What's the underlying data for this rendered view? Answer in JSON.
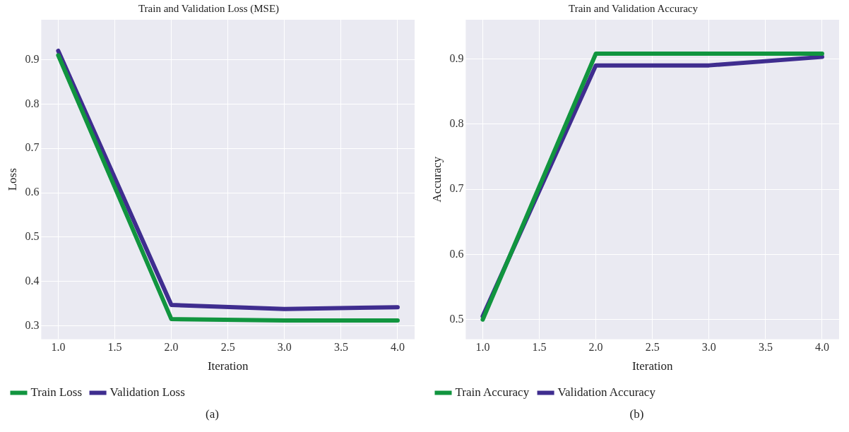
{
  "chart_data": [
    {
      "type": "line",
      "title": "Train and Validation Loss (MSE)",
      "xlabel": "Iteration",
      "ylabel": "Loss",
      "x": [
        1,
        2,
        3,
        4
      ],
      "series": [
        {
          "name": "Train Loss",
          "color": "#11953f",
          "values": [
            0.91,
            0.315,
            0.312,
            0.312
          ]
        },
        {
          "name": "Validation Loss",
          "color": "#3f2d8f",
          "values": [
            0.92,
            0.347,
            0.338,
            0.342
          ]
        }
      ],
      "xlim": [
        0.85,
        4.15
      ],
      "xticks": [
        {
          "value": 1,
          "label": "1.0"
        },
        1.5,
        {
          "value": 2,
          "label": "2.0"
        },
        2.5,
        {
          "value": 3,
          "label": "3.0"
        },
        3.5,
        {
          "value": 4,
          "label": "4.0"
        }
      ],
      "ylim": [
        0.27,
        0.99
      ],
      "yticks": [
        0.3,
        0.4,
        0.5,
        0.6,
        0.7,
        0.8,
        0.9
      ],
      "grid": true,
      "legend": "bottom",
      "line_style": "solid",
      "annotations": [
        "(a)"
      ]
    },
    {
      "type": "line",
      "title": "Train and Validation Accuracy",
      "xlabel": "Iteration",
      "ylabel": "Accuracy",
      "x": [
        1,
        2,
        3,
        4
      ],
      "series": [
        {
          "name": "Train Accuracy",
          "color": "#11953f",
          "values": [
            0.5,
            0.908,
            0.908,
            0.908
          ]
        },
        {
          "name": "Validation Accuracy",
          "color": "#3f2d8f",
          "values": [
            0.505,
            0.89,
            0.89,
            0.903
          ]
        }
      ],
      "xlim": [
        0.85,
        4.15
      ],
      "xticks": [
        {
          "value": 1,
          "label": "1.0"
        },
        1.5,
        {
          "value": 2,
          "label": "2.0"
        },
        2.5,
        {
          "value": 3,
          "label": "3.0"
        },
        3.5,
        {
          "value": 4,
          "label": "4.0"
        }
      ],
      "ylim": [
        0.47,
        0.96
      ],
      "yticks": [
        0.5,
        0.6,
        0.7,
        0.8,
        0.9
      ],
      "grid": true,
      "legend": "bottom",
      "line_style": "solid",
      "annotations": [
        "(b)"
      ]
    }
  ]
}
